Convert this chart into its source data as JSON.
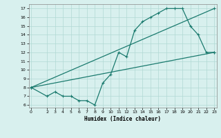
{
  "line1_x": [
    0,
    2,
    3,
    4,
    5,
    6,
    7,
    8,
    9,
    10,
    11,
    12,
    13,
    14,
    15,
    16,
    17,
    18,
    19,
    20,
    21,
    22,
    23
  ],
  "line1_y": [
    8,
    7,
    7.5,
    7,
    7,
    6.5,
    6.5,
    6,
    8.5,
    9.5,
    12,
    11.5,
    14.5,
    15.5,
    16,
    16.5,
    17,
    17,
    17,
    15,
    14,
    12,
    12
  ],
  "line2_x": [
    0,
    23
  ],
  "line2_y": [
    8,
    12
  ],
  "line3_x": [
    0,
    23
  ],
  "line3_y": [
    8,
    17
  ],
  "line_color": "#1a7a6e",
  "bg_color": "#d8f0ee",
  "grid_color": "#b0d8d4",
  "xlabel": "Humidex (Indice chaleur)",
  "xticks": [
    0,
    2,
    3,
    4,
    5,
    6,
    7,
    8,
    9,
    10,
    11,
    12,
    13,
    14,
    15,
    16,
    17,
    18,
    19,
    20,
    21,
    22,
    23
  ],
  "yticks": [
    6,
    7,
    8,
    9,
    10,
    11,
    12,
    13,
    14,
    15,
    16,
    17
  ],
  "xlim": [
    -0.3,
    23.3
  ],
  "ylim": [
    5.7,
    17.5
  ],
  "marker": "+",
  "markersize": 3,
  "linewidth": 0.9
}
